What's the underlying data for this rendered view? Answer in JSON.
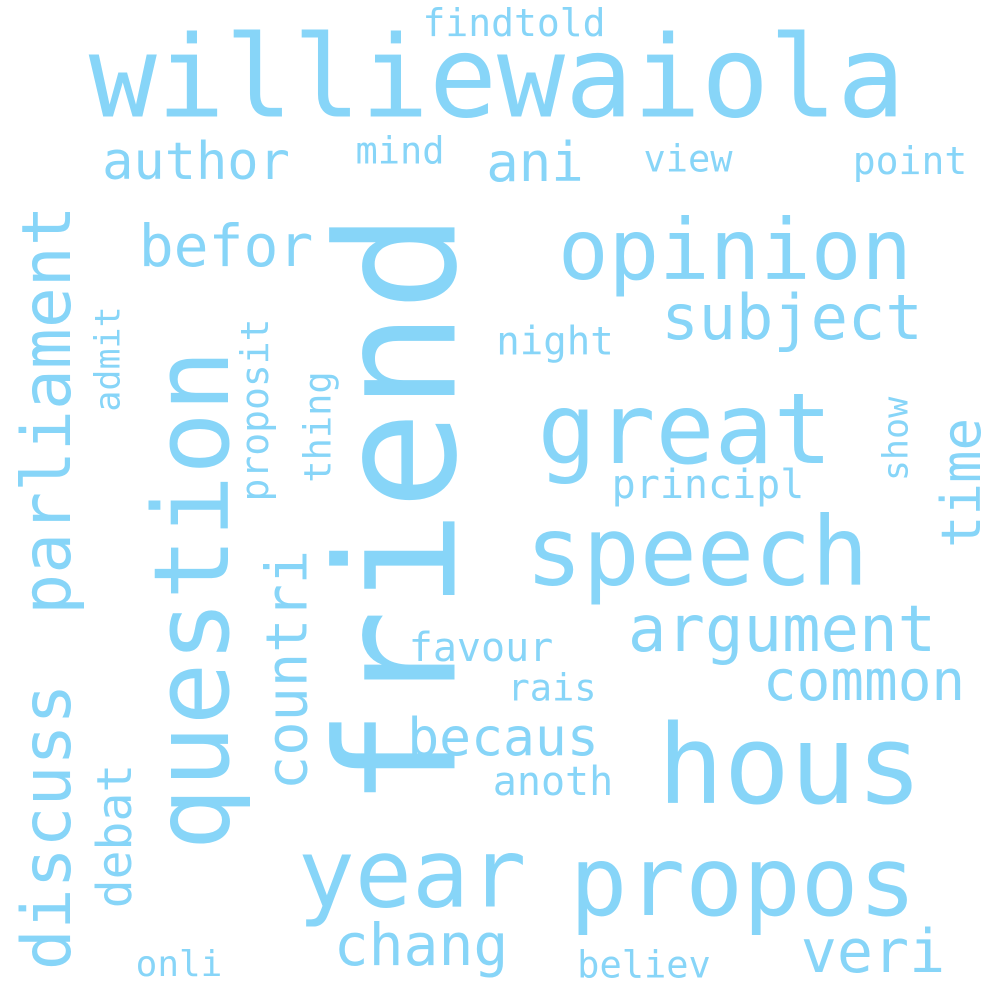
{
  "words": {
    "williewaiola": "williewaiola",
    "friend": "friend",
    "question": "question",
    "opinion": "opinion",
    "great": "great",
    "speech": "speech",
    "hous": "hous",
    "propos": "propos",
    "year": "year",
    "discuss": "discuss",
    "parliament": "parliament",
    "argument": "argument",
    "subject": "subject",
    "common": "common",
    "countri": "countri",
    "becaus": "becaus",
    "chang": "chang",
    "veri": "veri",
    "time": "time",
    "author": "author",
    "befor": "befor",
    "ani": "ani",
    "debat": "debat",
    "findtold": "findtold",
    "mind": "mind",
    "view": "view",
    "point": "point",
    "night": "night",
    "principl": "principl",
    "proposit": "proposit",
    "thing": "thing",
    "admit": "admit",
    "show": "show",
    "favour": "favour",
    "rais": "rais",
    "anoth": "anoth",
    "onli": "onli",
    "believ": "believ"
  },
  "colors": {
    "word": "#87d5f8",
    "background": "#ffffff"
  }
}
